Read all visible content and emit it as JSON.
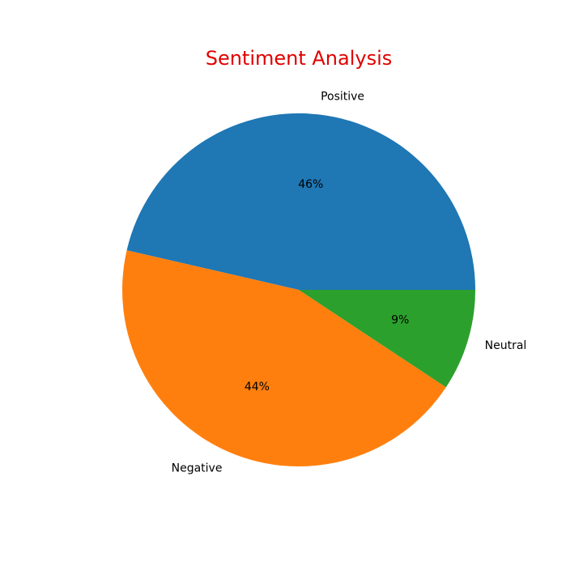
{
  "chart_data": {
    "type": "pie",
    "title": "Sentiment Analysis",
    "title_color": "#e00000",
    "categories": [
      "Positive",
      "Negative",
      "Neutral"
    ],
    "values": [
      46.4,
      44.3,
      9.3
    ],
    "percent_labels": [
      "46%",
      "44%",
      "9%"
    ],
    "colors": [
      "#1f77b4",
      "#ff7f0e",
      "#2ca02c"
    ],
    "start_angle_deg": 0,
    "direction": "counterclockwise",
    "legend": "none"
  }
}
